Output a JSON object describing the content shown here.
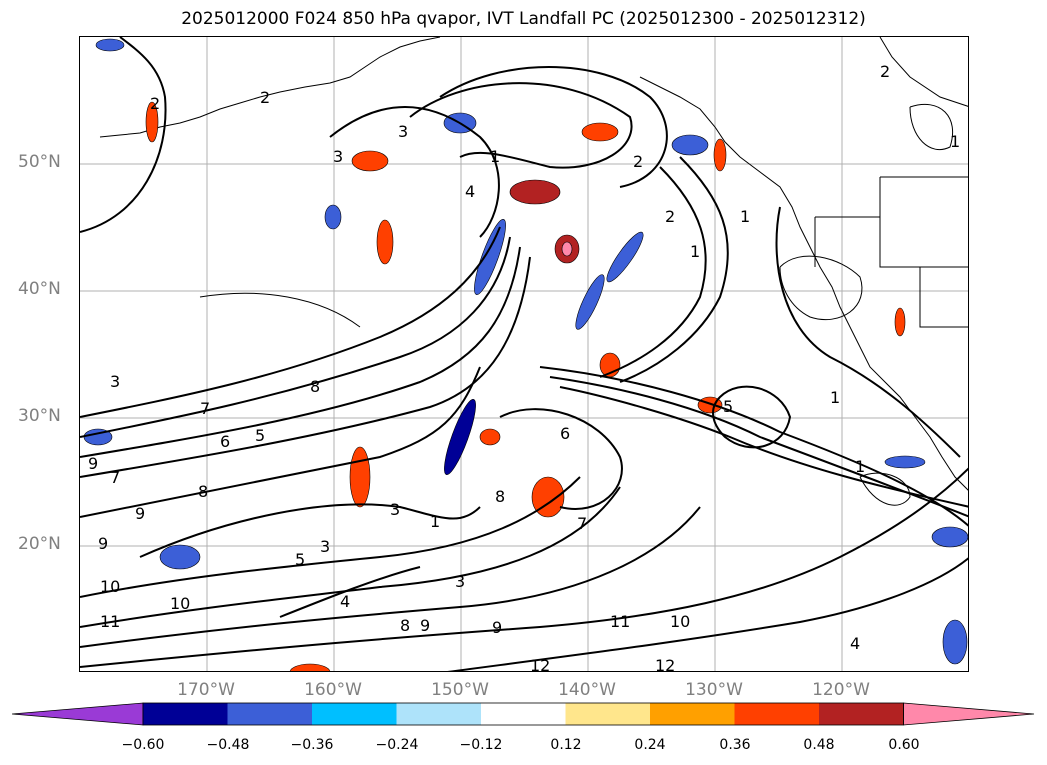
{
  "title": "2025012000 F024 850 hPa qvapor, IVT Landfall PC (2025012300 - 2025012312)",
  "lat_labels": [
    "50°N",
    "40°N",
    "30°N",
    "20°N"
  ],
  "lon_labels": [
    "170°W",
    "160°W",
    "150°W",
    "140°W",
    "130°W",
    "120°W"
  ],
  "colorbar": {
    "ticks": [
      "−0.60",
      "−0.48",
      "−0.36",
      "−0.24",
      "−0.12",
      "0.12",
      "0.24",
      "0.36",
      "0.48",
      "0.60"
    ],
    "colors": [
      "#9a3ad6",
      "#000096",
      "#3c5fd7",
      "#00bfff",
      "#aee3fa",
      "#ffffff",
      "#ffe68c",
      "#ffa000",
      "#ff4000",
      "#b22222",
      "#ff88aa"
    ],
    "extend": "both"
  },
  "contour_labels": [
    "1",
    "2",
    "3",
    "4",
    "5",
    "6",
    "7",
    "8",
    "9",
    "10",
    "11",
    "12"
  ],
  "colors": {
    "grid": "#b0b0b0",
    "contour": "#000000",
    "axis_text": "#808080"
  }
}
